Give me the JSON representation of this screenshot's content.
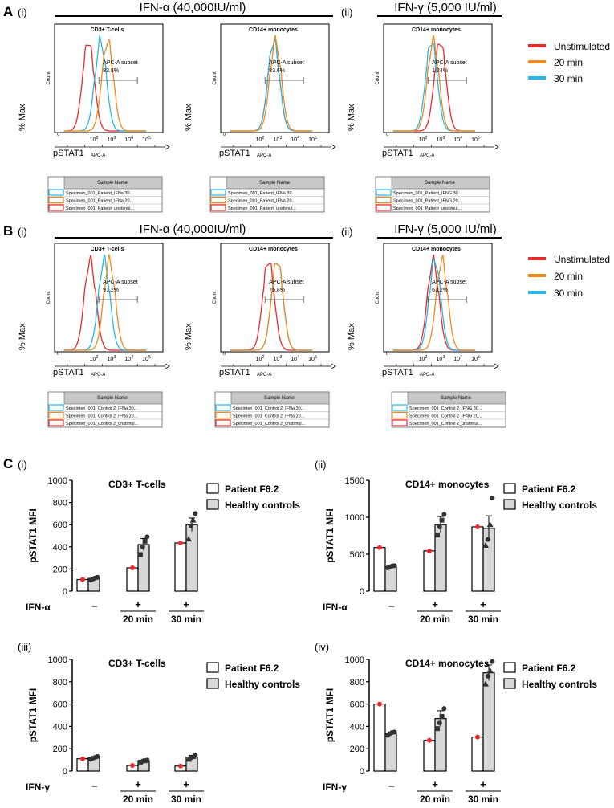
{
  "panels": {
    "A": "A",
    "B": "B",
    "C": "C"
  },
  "roman": {
    "i": "(i)",
    "ii": "(ii)",
    "iii": "(iii)",
    "iv": "(iv)"
  },
  "headers": {
    "ifna": "IFN-α (40,000IU/ml)",
    "ifng": "IFN-γ (5,000 IU/ml)"
  },
  "colors": {
    "unstim": "#e8282b",
    "min20": "#ef8a1e",
    "min30": "#27b6e8"
  },
  "histogram": {
    "count_label": "Count",
    "ylabel": "% Max",
    "xlabel": "pSTAT1",
    "axis_unit": "APC-A",
    "tick_0": "0",
    "exponents": [
      "2",
      "3",
      "4",
      "5"
    ],
    "subset_label": "APC-A subset",
    "table_header": "Sample Name"
  },
  "legend": {
    "unstimulated": "Unstimulated",
    "min20": "20 min",
    "min30": "30 min"
  },
  "chart_data": [
    {
      "panel": "A(i)",
      "type": "histogram",
      "title": "CD3+ T-cells",
      "stimulus": "IFN-α",
      "subset_percent": "83.8%",
      "peaks_log10": {
        "unstimulated": 1.7,
        "min20": 2.8,
        "min30": 2.4
      },
      "samples": [
        "Specimen_001_Patient_IFNa 30...",
        "Specimen_001_Patient_IFNa 20...",
        "Specimen_001_Patient_unstimul..."
      ]
    },
    {
      "panel": "A(i)b",
      "type": "histogram",
      "title": "CD14+ monocytes",
      "stimulus": "IFN-α",
      "subset_percent": "83.6%",
      "peaks_log10": {
        "unstimulated": 2.8,
        "min20": 2.9,
        "min30": 2.8
      },
      "samples": [
        "Specimen_001_Patient_IFNa 30...",
        "Specimen_001_Patient_IFNa 20...",
        "Specimen_001_Patient_unstimul..."
      ]
    },
    {
      "panel": "A(ii)",
      "type": "histogram",
      "title": "CD14+ monocytes",
      "stimulus": "IFN-γ",
      "subset_percent": "1.24%",
      "peaks_log10": {
        "unstimulated": 3.0,
        "min20": 2.6,
        "min30": 2.5
      },
      "samples": [
        "Specimen_001_Patient_IFNG 30...",
        "Specimen_001_Patient_IFNG 20...",
        "Specimen_001_Patient_unstimul..."
      ]
    },
    {
      "panel": "B(i)",
      "type": "histogram",
      "title": "CD3+ T-cells",
      "stimulus": "IFN-α",
      "subset_percent": "91.2%",
      "peaks_log10": {
        "unstimulated": 1.8,
        "min20": 2.9,
        "min30": 2.6
      },
      "samples": [
        "Specimen_001_Control 2_IFNa 30...",
        "Specimen_001_Control 2_IFNa 20...",
        "Specimen_001_Control 2_unstimul..."
      ]
    },
    {
      "panel": "B(i)b",
      "type": "histogram",
      "title": "CD14+ monocytes",
      "stimulus": "IFN-α",
      "subset_percent": "75.8%",
      "peaks_log10": {
        "unstimulated": 2.5,
        "min20": 3.0,
        "min30": 3.0
      },
      "samples": [
        "Specimen_001_Control 2_IFNa 30...",
        "Specimen_001_Control 2_IFNa 20...",
        "Specimen_001_Control 2_unstimul..."
      ]
    },
    {
      "panel": "B(ii)",
      "type": "histogram",
      "title": "CD14+ monocytes",
      "stimulus": "IFN-γ",
      "subset_percent": "63.2%",
      "peaks_log10": {
        "unstimulated": 2.6,
        "min20": 3.1,
        "min30": 2.7
      },
      "samples": [
        "Specimen_001_Control 2_IFNG 30...",
        "Specimen_001_Control 2_IFNG 20...",
        "Specimen_001_Control 2_unstimul..."
      ]
    },
    {
      "panel": "C(i)",
      "type": "bar",
      "title": "CD3+ T-cells",
      "ylabel": "pSTAT1 MFI",
      "ylim": [
        0,
        1000
      ],
      "yticks": [
        0,
        200,
        400,
        600,
        800,
        1000
      ],
      "stim_label": "IFN-α",
      "minus": "–",
      "plus": "+",
      "time_labels": [
        "20 min",
        "30 min"
      ],
      "series": [
        {
          "name": "Patient F6.2",
          "values": [
            105,
            210,
            435
          ]
        },
        {
          "name": "Healthy controls",
          "values": [
            115,
            420,
            600
          ],
          "error": [
            10,
            55,
            60
          ],
          "points": [
            [
              100,
              110,
              118,
              125
            ],
            [
              330,
              400,
              450,
              490
            ],
            [
              470,
              590,
              640,
              700
            ]
          ]
        }
      ]
    },
    {
      "panel": "C(ii)",
      "type": "bar",
      "title": "CD14+ monocytes",
      "ylabel": "pSTAT1 MFI",
      "ylim": [
        0,
        1500
      ],
      "yticks": [
        0,
        500,
        1000,
        1500
      ],
      "stim_label": "IFN-α",
      "minus": "–",
      "plus": "+",
      "time_labels": [
        "20 min",
        "30 min"
      ],
      "series": [
        {
          "name": "Patient F6.2",
          "values": [
            590,
            545,
            870
          ]
        },
        {
          "name": "Healthy controls",
          "values": [
            330,
            900,
            850
          ],
          "error": [
            20,
            110,
            170
          ],
          "points": [
            [
              315,
              330,
              340,
              345
            ],
            [
              760,
              870,
              960,
              1040
            ],
            [
              620,
              700,
              900,
              1260
            ]
          ]
        }
      ]
    },
    {
      "panel": "C(iii)",
      "type": "bar",
      "title": "CD3+ T-cells",
      "ylabel": "pSTAT1 MFI",
      "ylim": [
        0,
        1000
      ],
      "yticks": [
        0,
        200,
        400,
        600,
        800,
        1000
      ],
      "stim_label": "IFN-γ",
      "minus": "–",
      "plus": "+",
      "time_labels": [
        "20 min",
        "30 min"
      ],
      "series": [
        {
          "name": "Patient F6.2",
          "values": [
            110,
            50,
            45
          ]
        },
        {
          "name": "Healthy controls",
          "values": [
            120,
            90,
            125
          ],
          "error": [
            10,
            8,
            15
          ],
          "points": [
            [
              105,
              115,
              122,
              130
            ],
            [
              80,
              88,
              92,
              98
            ],
            [
              105,
              118,
              130,
              145
            ]
          ]
        }
      ]
    },
    {
      "panel": "C(iv)",
      "type": "bar",
      "title": "CD14+ monocytes",
      "ylabel": "pSTAT1 MFI",
      "ylim": [
        0,
        1000
      ],
      "yticks": [
        0,
        200,
        400,
        600,
        800,
        1000
      ],
      "stim_label": "IFN-γ",
      "minus": "–",
      "plus": "+",
      "time_labels": [
        "20 min",
        "30 min"
      ],
      "series": [
        {
          "name": "Patient F6.2",
          "values": [
            600,
            275,
            305
          ]
        },
        {
          "name": "Healthy controls",
          "values": [
            335,
            470,
            880
          ],
          "error": [
            15,
            70,
            70
          ],
          "points": [
            [
              320,
              335,
              345,
              350
            ],
            [
              380,
              430,
              490,
              560
            ],
            [
              780,
              850,
              900,
              980
            ]
          ]
        }
      ]
    }
  ]
}
